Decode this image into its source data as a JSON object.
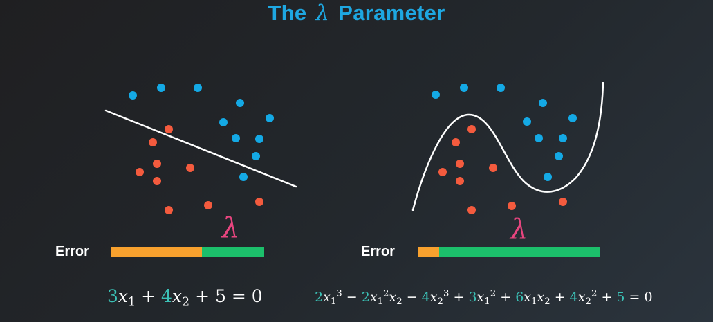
{
  "title": {
    "prefix": "The",
    "symbol": "λ",
    "suffix": "Parameter"
  },
  "colors": {
    "title": "#1ea7e1",
    "blue_point": "#14a9e5",
    "red_point": "#f45b3e",
    "boundary": "#ffffff",
    "error_bar": "#f8a12e",
    "lambda_bar": "#1cbf6b",
    "lambda_symbol": "#e8457f",
    "coefficient": "#3bc1b6"
  },
  "left_panel": {
    "error_label": "Error",
    "lambda_symbol": "λ",
    "error_fraction": 0.592,
    "equation_text": "3x_1 + 4x_2 + 5 = 0"
  },
  "right_panel": {
    "error_label": "Error",
    "lambda_symbol": "λ",
    "error_fraction": 0.114,
    "equation_text": "2x_1^3 − 2x_1^2 x_2 − 4x_2^3 + 3x_1^2 + 6x_1 x_2 + 4x_2^2 + 5 = 0"
  }
}
